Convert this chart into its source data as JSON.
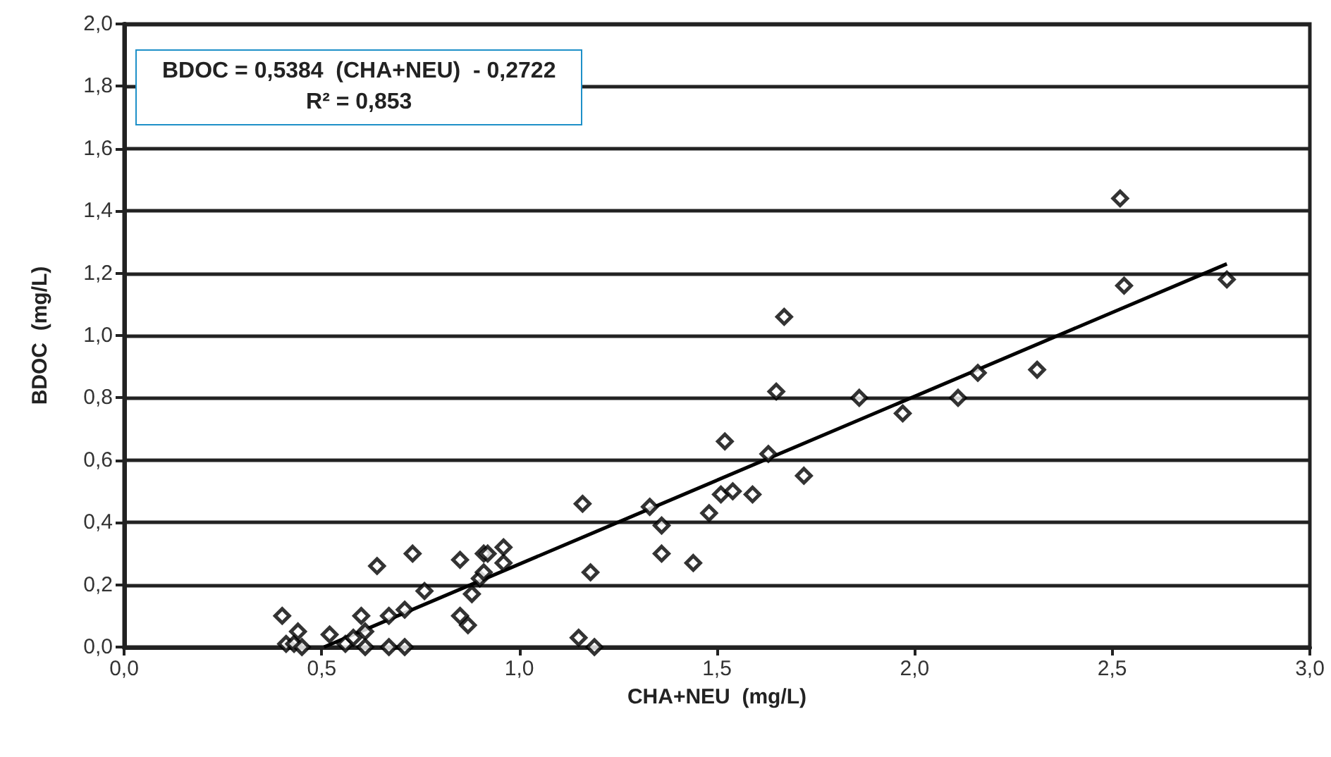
{
  "chart_data": {
    "type": "scatter",
    "xlabel": "CHA+NEU  (mg/L)",
    "ylabel": "BDOC  (mg/L)",
    "annotations": [
      "BDOC = 0,5384  (CHA+NEU)  - 0,2722",
      "R² = 0,853"
    ],
    "xlim": [
      0,
      3
    ],
    "ylim": [
      0,
      2
    ],
    "xticks": [
      {
        "value": 0,
        "label": "0,0"
      },
      {
        "value": 0.5,
        "label": "0,5"
      },
      {
        "value": 1,
        "label": "1,0"
      },
      {
        "value": 1.5,
        "label": "1,5"
      },
      {
        "value": 2,
        "label": "2,0"
      },
      {
        "value": 2.5,
        "label": "2,5"
      },
      {
        "value": 3,
        "label": "3,0"
      }
    ],
    "yticks": [
      {
        "value": 0,
        "label": "0,0"
      },
      {
        "value": 0.2,
        "label": "0,2"
      },
      {
        "value": 0.4,
        "label": "0,4"
      },
      {
        "value": 0.6,
        "label": "0,6"
      },
      {
        "value": 0.8,
        "label": "0,8"
      },
      {
        "value": 1,
        "label": "1,0"
      },
      {
        "value": 1.2,
        "label": "1,2"
      },
      {
        "value": 1.4,
        "label": "1,4"
      },
      {
        "value": 1.6,
        "label": "1,6"
      },
      {
        "value": 1.8,
        "label": "1,8"
      },
      {
        "value": 2,
        "label": "2,0"
      }
    ],
    "grid": "y",
    "marker": "diamond",
    "series": [
      {
        "color": "#000000",
        "x": [
          0.4,
          0.41,
          0.43,
          0.45,
          0.44,
          0.52,
          0.56,
          0.58,
          0.6,
          0.61,
          0.61,
          0.64,
          0.67,
          0.67,
          0.71,
          0.71,
          0.73,
          0.76,
          0.85,
          0.85,
          0.87,
          0.88,
          0.9,
          0.91,
          0.91,
          0.92,
          0.96,
          0.96,
          1.15,
          1.19,
          1.16,
          1.18,
          1.33,
          1.36,
          1.36,
          1.44,
          1.48,
          1.51,
          1.52,
          1.54,
          1.59,
          1.63,
          1.65,
          1.67,
          1.72,
          1.86,
          1.97,
          2.11,
          2.16,
          2.31,
          2.52,
          2.53,
          2.79
        ],
        "values": [
          0.1,
          0.01,
          0.01,
          0.0,
          0.05,
          0.04,
          0.01,
          0.03,
          0.1,
          0.05,
          0.0,
          0.26,
          0.1,
          0.0,
          0.12,
          0.0,
          0.3,
          0.18,
          0.1,
          0.28,
          0.07,
          0.17,
          0.22,
          0.24,
          0.3,
          0.3,
          0.32,
          0.27,
          0.03,
          0.0,
          0.46,
          0.24,
          0.45,
          0.39,
          0.3,
          0.27,
          0.43,
          0.49,
          0.66,
          0.5,
          0.49,
          0.62,
          0.82,
          1.06,
          0.55,
          0.8,
          0.75,
          0.8,
          0.88,
          0.89,
          1.44,
          1.16,
          1.18
        ]
      },
      {
        "type": "line",
        "color": "#000000",
        "marker": "none",
        "x": [
          0.506,
          2.79
        ],
        "values": [
          0,
          1.23
        ]
      }
    ]
  }
}
